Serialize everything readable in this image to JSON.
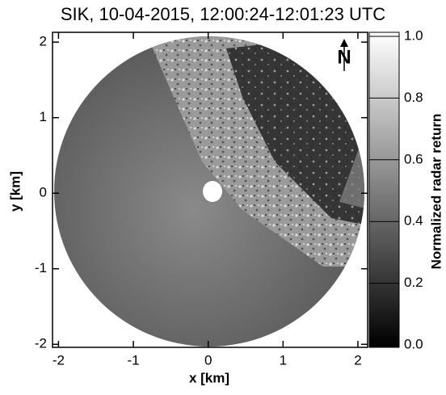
{
  "chart_data": {
    "type": "radar-image",
    "title": "SIK, 10-04-2015, 12:00:24-12:01:23 UTC",
    "x_label": "x [km]",
    "y_label": "y [km]",
    "xlim": [
      -2.08,
      2.13
    ],
    "xticks": [
      -2,
      -1,
      0,
      1,
      2
    ],
    "ylim": [
      -2.04,
      2.13
    ],
    "yticks": [
      -2,
      -1,
      0,
      1,
      2
    ],
    "colorbar": {
      "label": "Normalized radar return",
      "colormap": "gray",
      "lim": [
        0,
        1
      ],
      "ticks": [
        {
          "value": 0,
          "label": "0.0"
        },
        {
          "value": 0.2,
          "label": "0.2"
        },
        {
          "value": 0.4,
          "label": "0.4"
        },
        {
          "value": 0.6,
          "label": "0.6"
        },
        {
          "value": 0.8,
          "label": "0.8"
        },
        {
          "value": 1,
          "label": "1.0"
        }
      ]
    },
    "north_label": "N"
  }
}
